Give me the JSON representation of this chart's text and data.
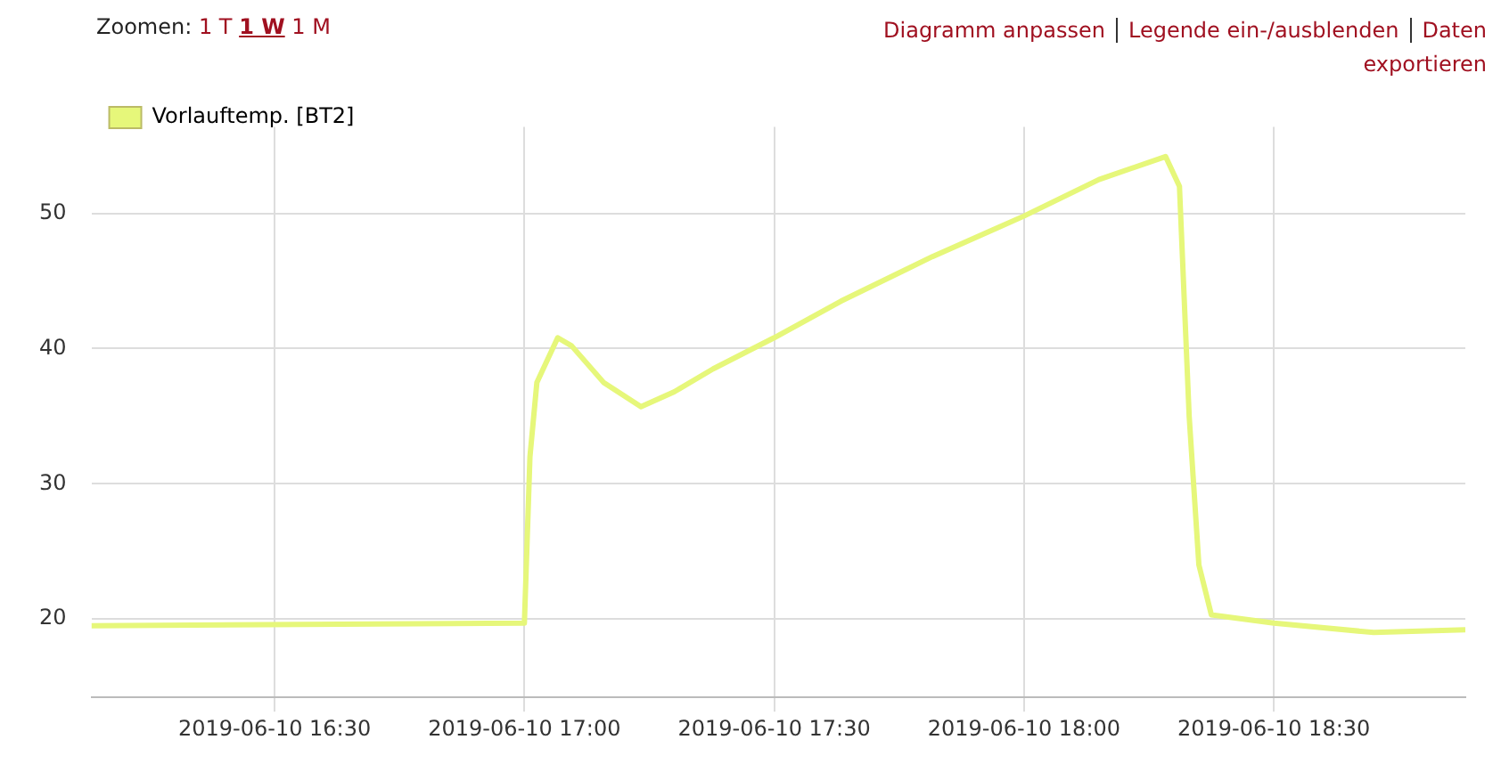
{
  "chart_data": {
    "type": "line",
    "annotations": [
      "Zoomen:",
      "1 T",
      "1 W",
      "1 M",
      "Diagramm anpassen",
      "Legende ein-/ausblenden",
      "Daten exportieren"
    ],
    "x": [
      "2019-06-10T16:08",
      "2019-06-10T17:00",
      "2019-06-10T17:00:40",
      "2019-06-10T17:01:30",
      "2019-06-10T17:04",
      "2019-06-10T17:05:40",
      "2019-06-10T17:09:30",
      "2019-06-10T17:14",
      "2019-06-10T17:18",
      "2019-06-10T17:22:40",
      "2019-06-10T17:30",
      "2019-06-10T17:38",
      "2019-06-10T17:49",
      "2019-06-10T18:00",
      "2019-06-10T18:09",
      "2019-06-10T18:17",
      "2019-06-10T18:18:40",
      "2019-06-10T18:19:50",
      "2019-06-10T18:21",
      "2019-06-10T18:22:30",
      "2019-06-10T18:30",
      "2019-06-10T18:42",
      "2019-06-10T18:53"
    ],
    "series": [
      {
        "name": "Vorlauftemp. [BT2]",
        "color": "#e6f77a",
        "values": [
          19.5,
          19.7,
          32,
          37.5,
          40.8,
          40.2,
          37.5,
          35.7,
          36.8,
          38.5,
          40.8,
          43.5,
          46.8,
          49.8,
          52.5,
          54.2,
          52,
          35,
          24,
          20.3,
          19.7,
          19.0,
          19.2
        ]
      }
    ],
    "xlim": [
      "2019-06-10T16:08",
      "2019-06-10T18:53"
    ],
    "xticks": [
      {
        "value": "2019-06-10T16:30",
        "label": "2019-06-10 16:30"
      },
      {
        "value": "2019-06-10T17:00",
        "label": "2019-06-10 17:00"
      },
      {
        "value": "2019-06-10T17:30",
        "label": "2019-06-10 17:30"
      },
      {
        "value": "2019-06-10T18:00",
        "label": "2019-06-10 18:00"
      },
      {
        "value": "2019-06-10T18:30",
        "label": "2019-06-10 18:30"
      }
    ],
    "ylim": [
      14.2,
      56.4
    ],
    "yticks": [
      20,
      30,
      40,
      50
    ],
    "grid": true,
    "legend": "top left",
    "marker": "none",
    "line_style": "solid"
  }
}
